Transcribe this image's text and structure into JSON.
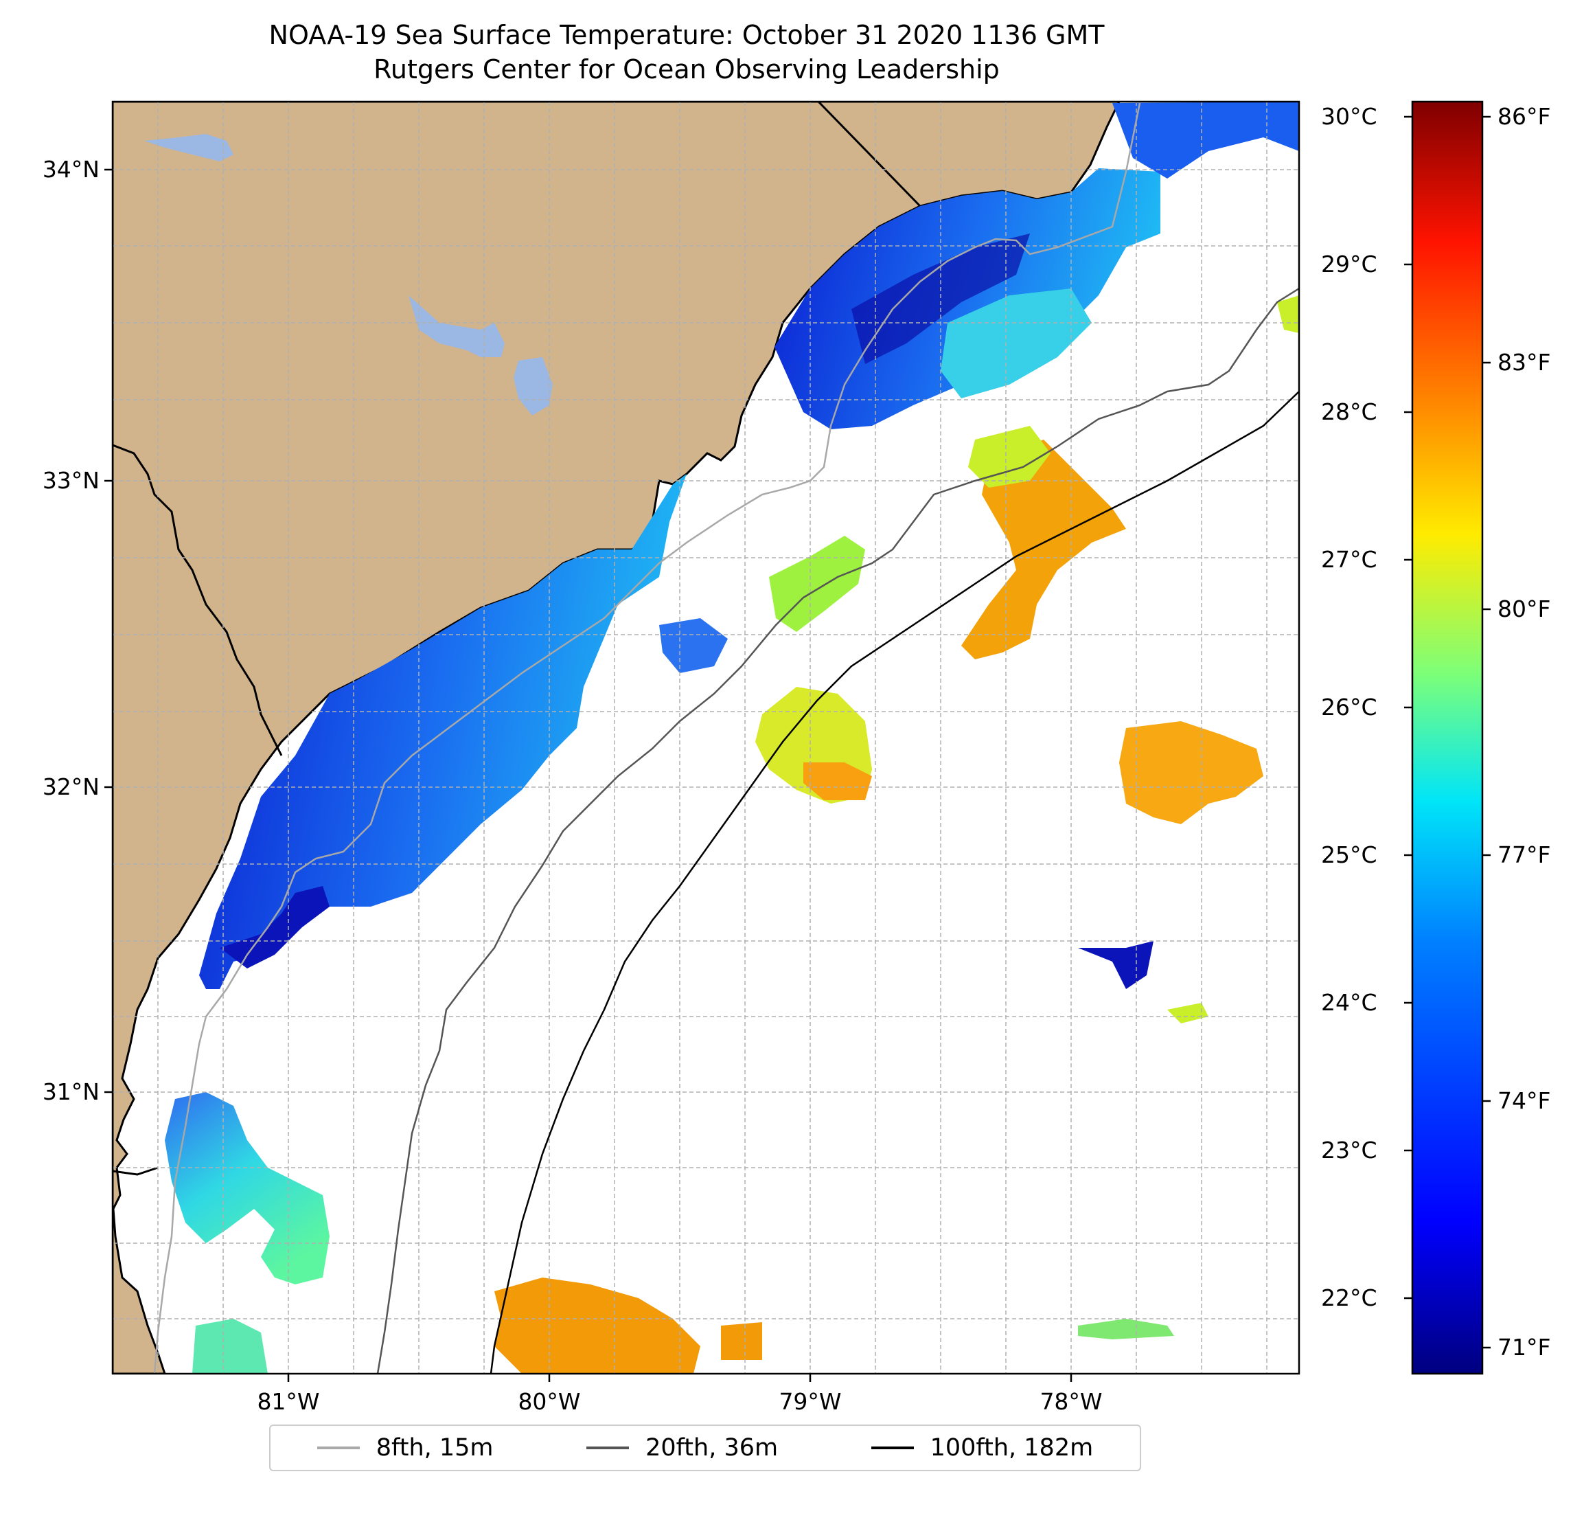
{
  "title": {
    "line1": "NOAA-19 Sea Surface Temperature: October 31 2020 1136 GMT",
    "line2": "Rutgers Center for Ocean Observing Leadership"
  },
  "axes": {
    "lat_labels": [
      "34°N",
      "33°N",
      "32°N",
      "31°N"
    ],
    "lon_labels": [
      "81°W",
      "80°W",
      "79°W",
      "78°W"
    ]
  },
  "colorbar": {
    "celsius_labels": [
      "30°C",
      "29°C",
      "28°C",
      "27°C",
      "26°C",
      "25°C",
      "24°C",
      "23°C",
      "22°C"
    ],
    "fahrenheit_labels": [
      "86°F",
      "83°F",
      "80°F",
      "77°F",
      "74°F",
      "71°F"
    ],
    "colors": [
      "#00007f",
      "#0000ff",
      "#0080ff",
      "#00e5f8",
      "#7cff79",
      "#ffeb00",
      "#ff8a00",
      "#ff1300",
      "#7f0000"
    ]
  },
  "legend": {
    "items": [
      {
        "label": "8fth, 15m",
        "color": "#a8a8a8"
      },
      {
        "label": "20fth, 36m",
        "color": "#555555"
      },
      {
        "label": "100fth, 182m",
        "color": "#000000"
      }
    ]
  },
  "colors": {
    "land": "#d2b48c",
    "lakes": "#9bb7e3",
    "ocean": "#ffffff",
    "grid": "#b0b0b0"
  }
}
